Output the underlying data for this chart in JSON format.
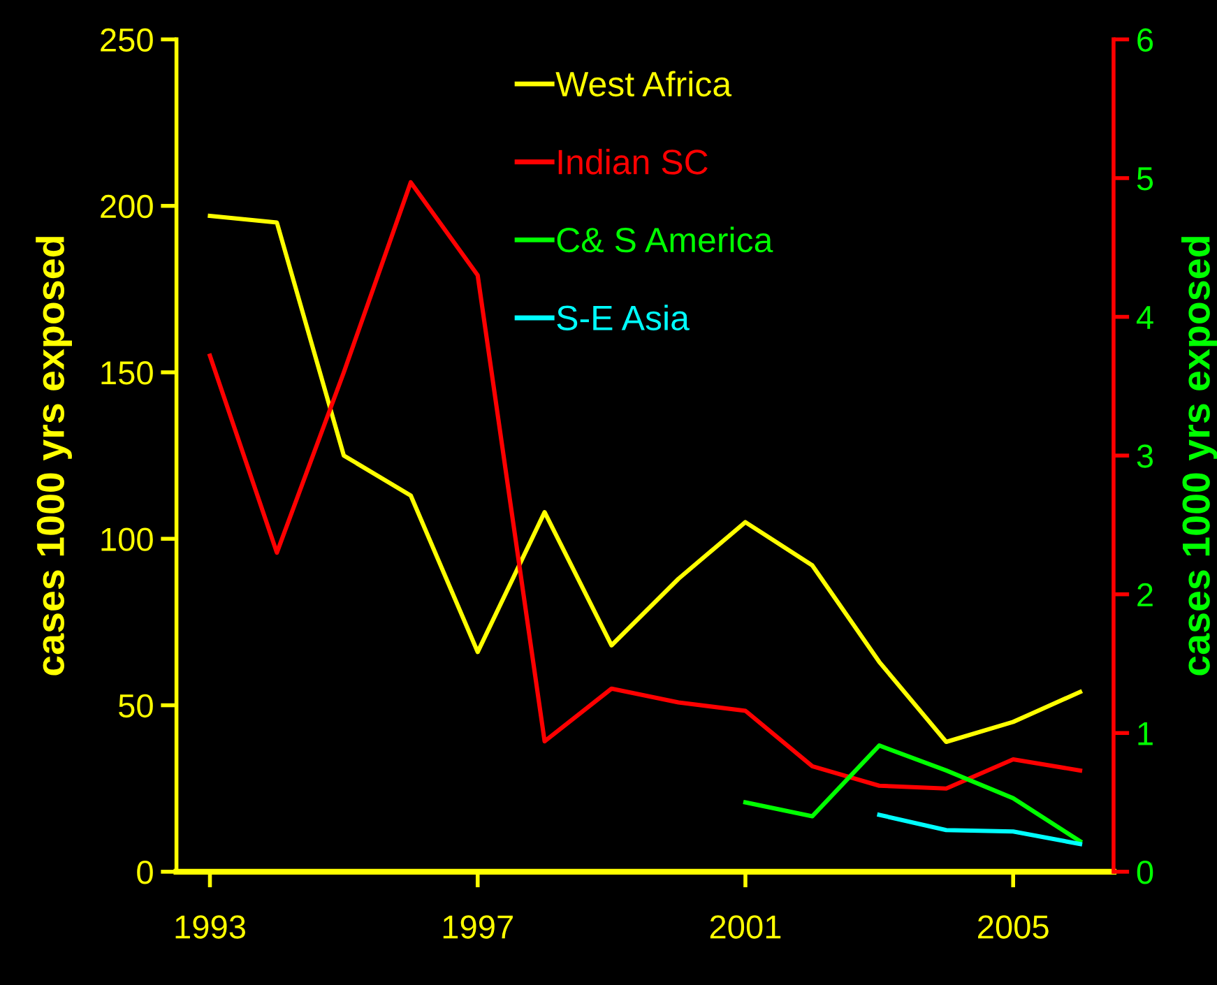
{
  "chart_data": {
    "type": "line",
    "ylabel": "cases 1000 yrs exposed",
    "y2label": "cases 1000 yrs exposed",
    "x": [
      1993,
      1994,
      1995,
      1996,
      1997,
      1998,
      1999,
      2000,
      2001,
      2002,
      2003,
      2004,
      2005,
      2006
    ],
    "series": [
      {
        "name": "West Africa",
        "color": "#ffff00",
        "values": [
          197,
          195,
          125,
          113,
          66,
          108,
          68,
          88,
          105,
          92,
          63,
          39,
          45,
          54
        ]
      },
      {
        "name": "Indian SC",
        "color": "#ff0000",
        "axis": "y2",
        "values": [
          3.72,
          2.3,
          3.6,
          4.97,
          4.3,
          0.94,
          1.32,
          1.22,
          1.16,
          0.76,
          0.62,
          0.6,
          0.81,
          0.73
        ]
      },
      {
        "name": "C& S America",
        "color": "#00ff00",
        "axis": "y2",
        "values": [
          null,
          null,
          null,
          null,
          null,
          null,
          null,
          null,
          0.5,
          0.4,
          0.91,
          0.73,
          0.53,
          0.22
        ]
      },
      {
        "name": "S-E Asia",
        "color": "#00ffff",
        "axis": "y2",
        "values": [
          null,
          null,
          null,
          null,
          null,
          null,
          null,
          null,
          null,
          null,
          0.41,
          0.3,
          0.29,
          0.2
        ]
      }
    ],
    "xlim": [
      1992.5,
      2006.5
    ],
    "xticks": [
      1993,
      1997,
      2001,
      2005
    ],
    "ylim": [
      0,
      250
    ],
    "yticks": [
      0,
      50,
      100,
      150,
      200,
      250
    ],
    "y2lim": [
      0,
      6
    ],
    "y2ticks": [
      0,
      1,
      2,
      3,
      4,
      5,
      6
    ],
    "grid": false,
    "legend": "top",
    "marker": "none",
    "line_style": "solid"
  }
}
